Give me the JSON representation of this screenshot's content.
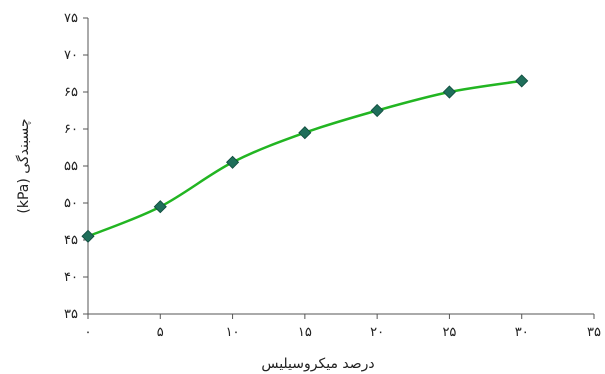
{
  "chart_data": {
    "type": "line",
    "xlabel": "درصد میکروسیلیس",
    "ylabel": "(kPa) چسبندگی",
    "xlim": [
      0,
      35
    ],
    "ylim": [
      35,
      75
    ],
    "x_ticks": [
      0,
      5,
      10,
      15,
      20,
      25,
      30,
      35
    ],
    "x_tick_labels": [
      "۰",
      "۵",
      "۱۰",
      "۱۵",
      "۲۰",
      "۲۵",
      "۳۰",
      "۳۵"
    ],
    "y_ticks": [
      35,
      40,
      45,
      50,
      55,
      60,
      65,
      70,
      75
    ],
    "y_tick_labels": [
      "۳۵",
      "۴۰",
      "۴۵",
      "۵۰",
      "۵۵",
      "۶۰",
      "۶۵",
      "۷۰",
      "۷۵"
    ],
    "grid": false,
    "series": [
      {
        "x": [
          0,
          5,
          10,
          15,
          20,
          25,
          30
        ],
        "values": [
          45.5,
          49.5,
          55.5,
          59.5,
          62.5,
          65.0,
          66.5
        ],
        "line_color": "#22b522",
        "marker_color": "#1f6e5a",
        "marker": "diamond"
      }
    ]
  }
}
